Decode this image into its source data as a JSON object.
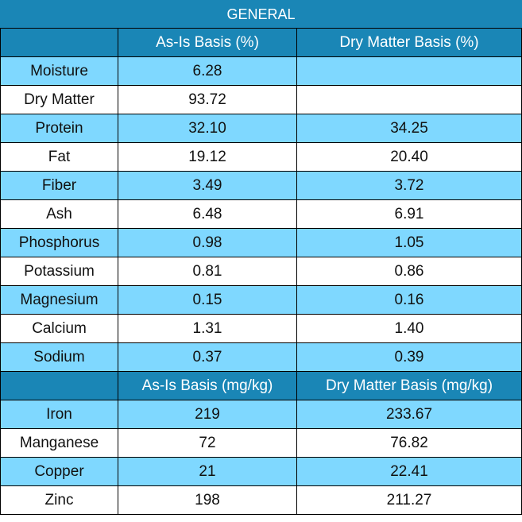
{
  "title": "GENERAL",
  "percent_header": {
    "label": "",
    "as_is": "As-Is Basis (%)",
    "dry": "Dry Matter Basis (%)"
  },
  "percent_rows": [
    {
      "name": "Moisture",
      "as_is": "6.28",
      "dry": ""
    },
    {
      "name": "Dry Matter",
      "as_is": "93.72",
      "dry": ""
    },
    {
      "name": "Protein",
      "as_is": "32.10",
      "dry": "34.25"
    },
    {
      "name": "Fat",
      "as_is": "19.12",
      "dry": "20.40"
    },
    {
      "name": "Fiber",
      "as_is": "3.49",
      "dry": "3.72"
    },
    {
      "name": "Ash",
      "as_is": "6.48",
      "dry": "6.91"
    },
    {
      "name": "Phosphorus",
      "as_is": "0.98",
      "dry": "1.05"
    },
    {
      "name": "Potassium",
      "as_is": "0.81",
      "dry": "0.86"
    },
    {
      "name": "Magnesium",
      "as_is": "0.15",
      "dry": "0.16"
    },
    {
      "name": "Calcium",
      "as_is": "1.31",
      "dry": "1.40"
    },
    {
      "name": "Sodium",
      "as_is": "0.37",
      "dry": "0.39"
    }
  ],
  "mg_header": {
    "label": "",
    "as_is": "As-Is Basis (mg/kg)",
    "dry": "Dry Matter Basis (mg/kg)"
  },
  "mg_rows": [
    {
      "name": "Iron",
      "as_is": "219",
      "dry": "233.67"
    },
    {
      "name": "Manganese",
      "as_is": "72",
      "dry": "76.82"
    },
    {
      "name": "Copper",
      "as_is": "21",
      "dry": "22.41"
    },
    {
      "name": "Zinc",
      "as_is": "198",
      "dry": "211.27"
    }
  ],
  "colors": {
    "header_blue": "#1a86b6",
    "row_light_blue": "#7fd8ff",
    "row_white": "#ffffff"
  }
}
